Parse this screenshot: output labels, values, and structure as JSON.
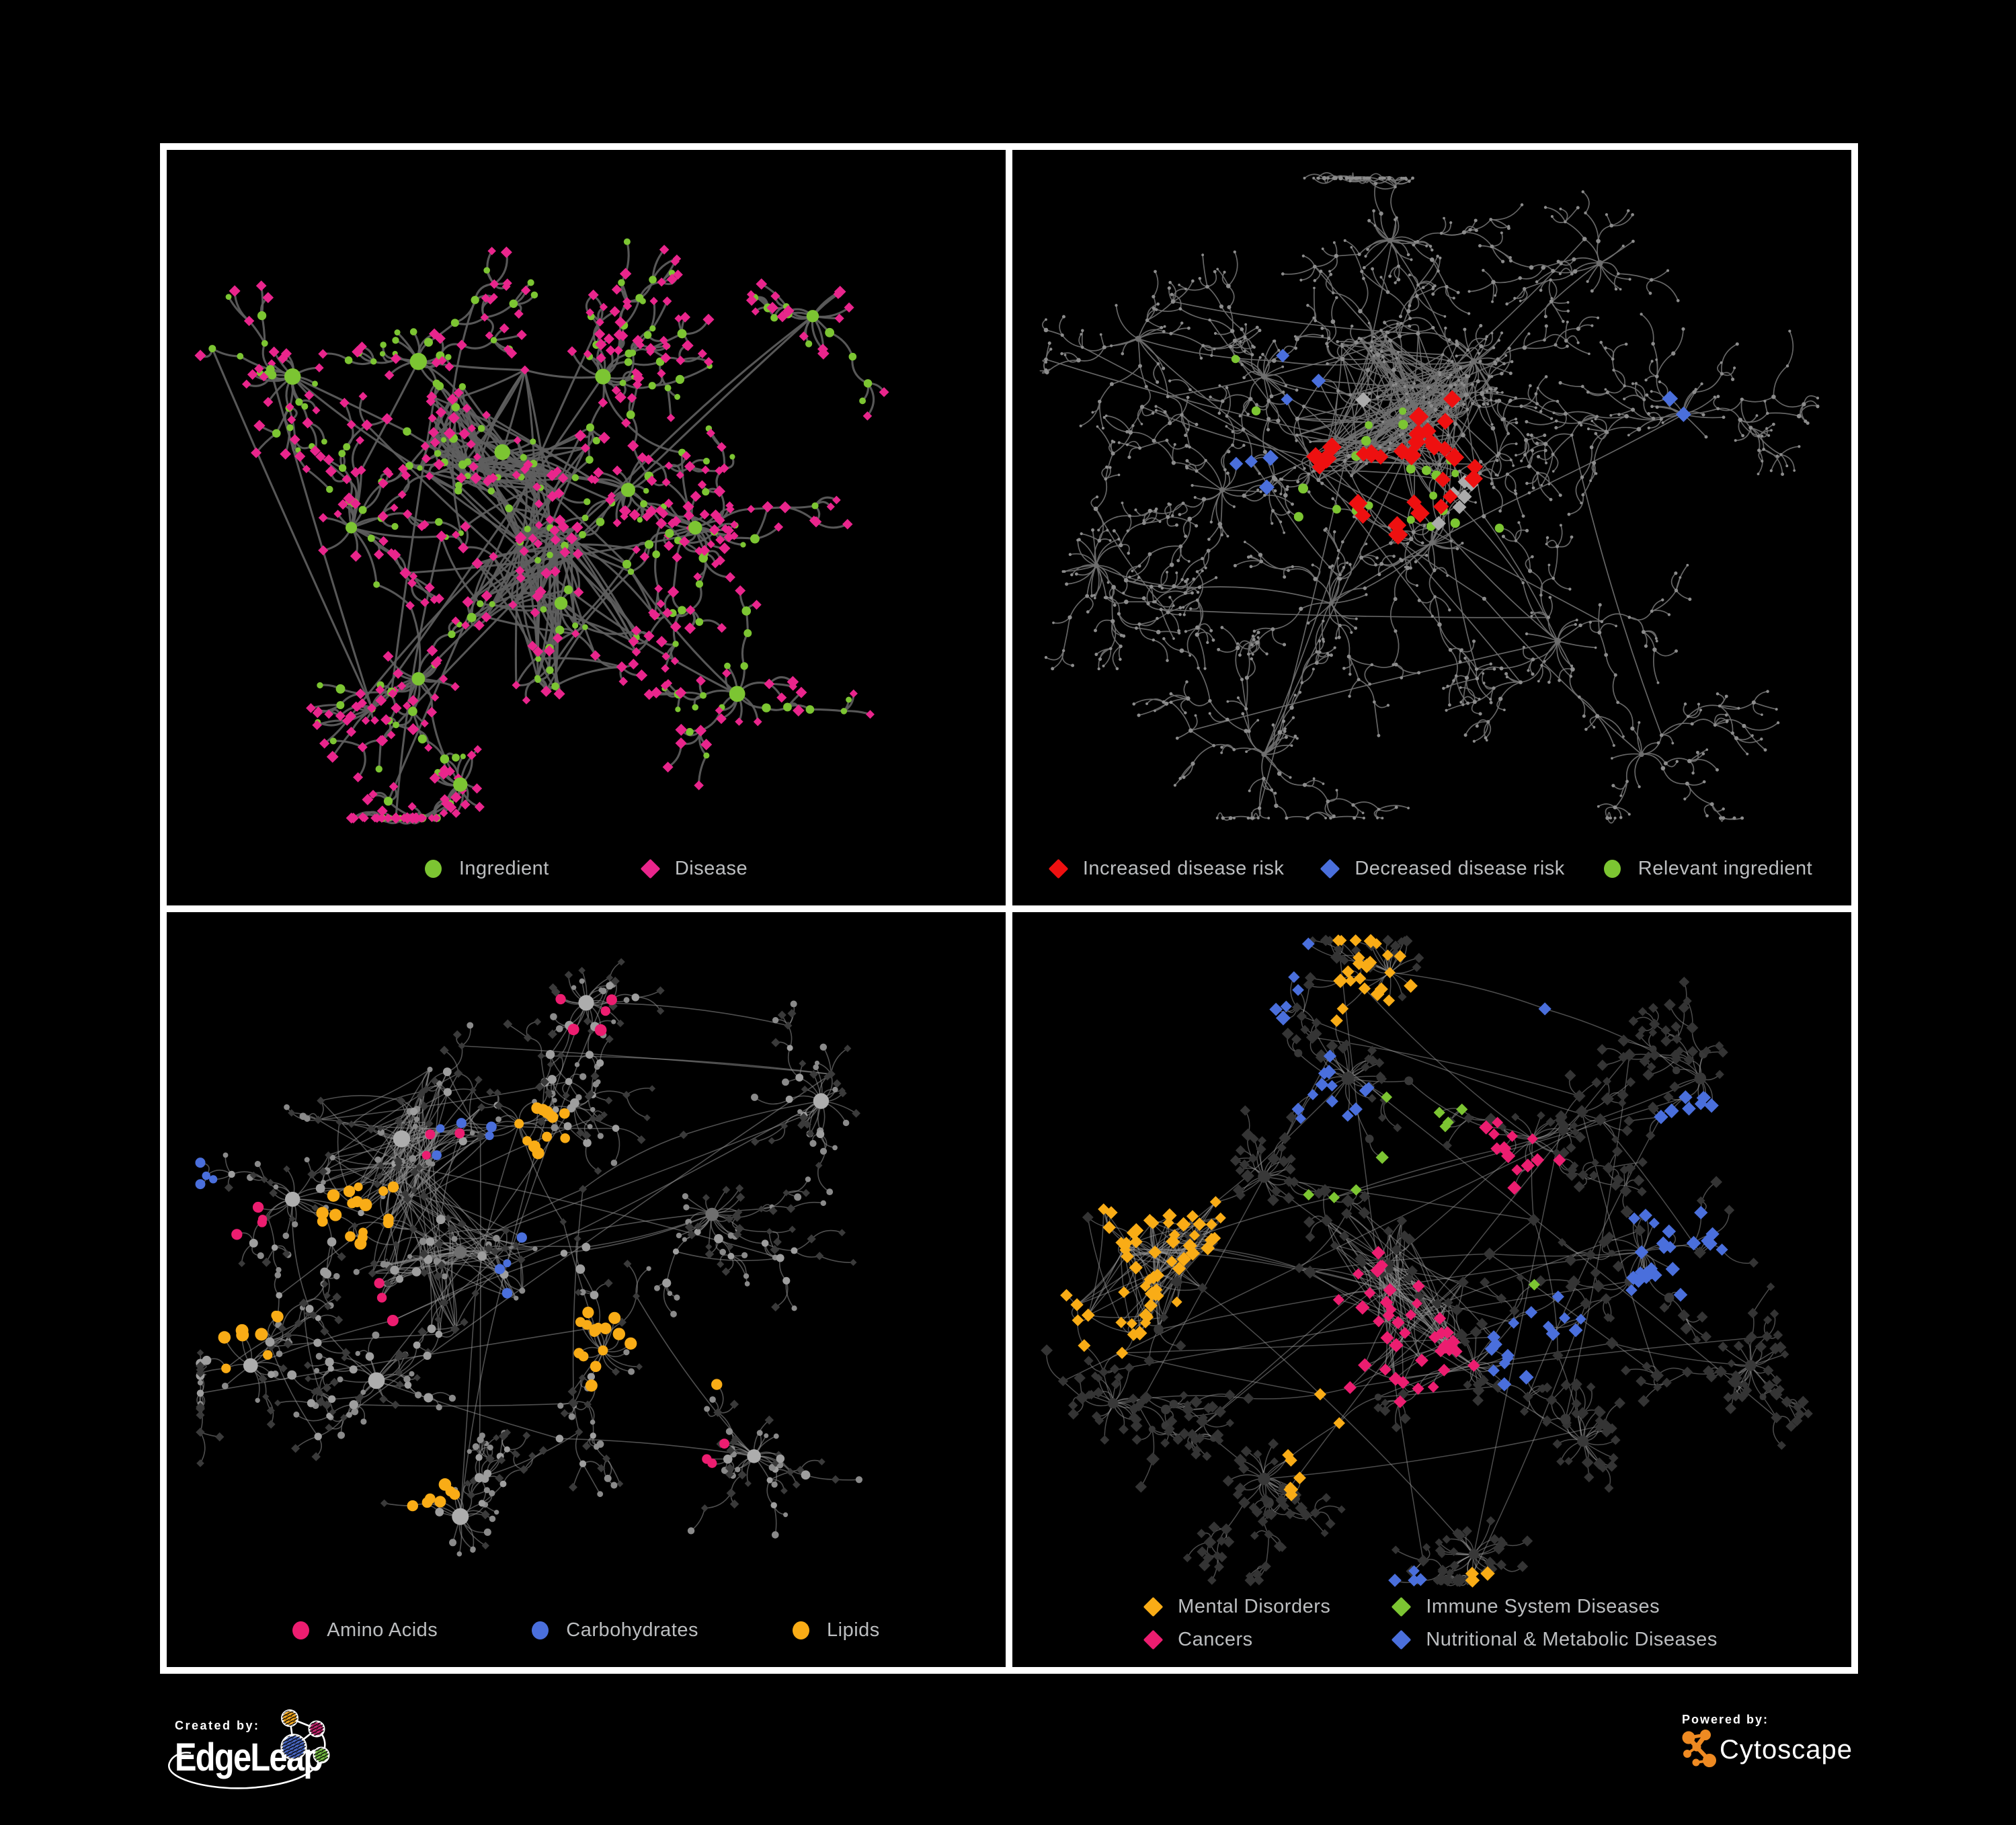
{
  "page": {
    "background": "#000000",
    "frame_color": "#FFFFFF"
  },
  "colors": {
    "green": "#7CC532",
    "pink_disease": "#E9258C",
    "pink_deep": "#EC1D70",
    "red": "#EE1010",
    "blue": "#4A6FDC",
    "orange": "#F9AC16",
    "legend_text": "#BCBEC0",
    "gray_light": "#9E9E9E",
    "gray_dot": "#8C8C8C",
    "gray_diamond": "#ABABAB",
    "dark_node": "#373737"
  },
  "panels": [
    {
      "id": "ingredient-disease",
      "legend": {
        "layout": "row",
        "items": [
          {
            "label": "Ingredient",
            "shape": "circle",
            "color": "#7CC532"
          },
          {
            "label": "Disease",
            "shape": "diamond",
            "color": "#E9258C"
          }
        ]
      },
      "network": {
        "seed": 7,
        "edge": {
          "color": "#5E5E5E",
          "width": 3.1,
          "opacity": 0.92
        },
        "centers": [
          [
            0.3,
            0.28
          ],
          [
            0.22,
            0.5
          ],
          [
            0.4,
            0.4
          ],
          [
            0.52,
            0.3
          ],
          [
            0.47,
            0.6
          ],
          [
            0.3,
            0.7
          ],
          [
            0.63,
            0.5
          ],
          [
            0.77,
            0.22
          ],
          [
            0.35,
            0.84
          ],
          [
            0.68,
            0.72
          ],
          [
            0.15,
            0.3
          ],
          [
            0.55,
            0.45
          ]
        ],
        "burst": [
          5,
          16
        ],
        "branches": [
          3,
          6
        ],
        "steps": [
          2,
          5
        ],
        "twig": 0.45,
        "fork": 0.3,
        "cross": 14,
        "hairballs": [
          2,
          4
        ],
        "roles": {
          "hub": [
            {
              "shape": "circle",
              "color": "#7CC532",
              "size": [
                8,
                13
              ],
              "w": 1
            }
          ],
          "internal": [
            {
              "shape": "circle",
              "color": "#7CC532",
              "size": [
                4.5,
                7
              ],
              "w": 0.55
            },
            {
              "shape": "diamond",
              "color": "#E9258C",
              "size": [
                6,
                9
              ],
              "w": 0.45
            }
          ],
          "leaf": [
            {
              "shape": "diamond",
              "color": "#E9258C",
              "size": [
                6,
                9
              ],
              "w": 0.8
            },
            {
              "shape": "circle",
              "color": "#7CC532",
              "size": [
                4,
                6
              ],
              "w": 0.2
            }
          ]
        },
        "highlights": []
      }
    },
    {
      "id": "disease-risk",
      "legend": {
        "layout": "row",
        "gap": 58,
        "items": [
          {
            "label": "Increased disease risk",
            "shape": "diamond",
            "color": "#EE1010"
          },
          {
            "label": "Decreased disease risk",
            "shape": "diamond",
            "color": "#4A6FDC"
          },
          {
            "label": "Relevant ingredient",
            "shape": "circle",
            "color": "#7CC532"
          }
        ]
      },
      "network": {
        "seed": 23,
        "edge": {
          "color": "#707070",
          "width": 1.7,
          "opacity": 0.9
        },
        "centers": [
          [
            0.3,
            0.3
          ],
          [
            0.45,
            0.36
          ],
          [
            0.55,
            0.28
          ],
          [
            0.25,
            0.45
          ],
          [
            0.5,
            0.52
          ],
          [
            0.38,
            0.6
          ],
          [
            0.15,
            0.25
          ],
          [
            0.7,
            0.15
          ],
          [
            0.8,
            0.35
          ],
          [
            0.65,
            0.65
          ],
          [
            0.3,
            0.8
          ],
          [
            0.75,
            0.8
          ],
          [
            0.45,
            0.12
          ],
          [
            0.1,
            0.55
          ]
        ],
        "burst": [
          4,
          14
        ],
        "branches": [
          4,
          7
        ],
        "steps": [
          3,
          6
        ],
        "twig": 0.7,
        "fork": 0.3,
        "cross": 20,
        "hairballs": [
          1
        ],
        "roles": {
          "hub": [
            {
              "shape": "circle",
              "color": "#6E6E6E",
              "size": [
                3.5,
                5
              ],
              "w": 1
            }
          ],
          "internal": [
            {
              "shape": "circle",
              "color": "#8C8C8C",
              "size": [
                2.2,
                3.4
              ],
              "w": 1
            }
          ],
          "leaf": [
            {
              "shape": "circle",
              "color": "#8C8C8C",
              "size": [
                1.8,
                2.6
              ],
              "w": 1
            }
          ]
        },
        "highlights": [
          {
            "shape": "diamond",
            "color": "#EE1010",
            "size": [
              11,
              15
            ],
            "count": 30,
            "spread": 0.1,
            "foci": [
              [
                0.45,
                0.4
              ],
              [
                0.57,
                0.35
              ],
              [
                0.5,
                0.52
              ],
              [
                0.33,
                0.44
              ],
              [
                0.75,
                0.76
              ]
            ]
          },
          {
            "shape": "diamond",
            "color": "#ABABAB",
            "size": [
              9,
              12
            ],
            "count": 7,
            "spread": 0.08,
            "foci": [
              [
                0.4,
                0.36
              ],
              [
                0.52,
                0.46
              ]
            ]
          },
          {
            "shape": "diamond",
            "color": "#4A6FDC",
            "size": [
              9,
              12
            ],
            "count": 9,
            "spread": 0.045,
            "foci": [
              [
                0.29,
                0.42
              ],
              [
                0.8,
                0.34
              ],
              [
                0.34,
                0.3
              ]
            ]
          },
          {
            "shape": "circle",
            "color": "#7CC532",
            "size": [
              5.5,
              7.5
            ],
            "count": 24,
            "spread": 0.1,
            "foci": [
              [
                0.28,
                0.3
              ],
              [
                0.47,
                0.38
              ],
              [
                0.36,
                0.52
              ],
              [
                0.56,
                0.52
              ]
            ]
          }
        ]
      }
    },
    {
      "id": "ingredient-classes",
      "legend": {
        "layout": "row",
        "items": [
          {
            "label": "Amino Acids",
            "shape": "circle",
            "color": "#EC1D70"
          },
          {
            "label": "Carbohydrates",
            "shape": "circle",
            "color": "#4A6FDC"
          },
          {
            "label": "Lipids",
            "shape": "circle",
            "color": "#F9AC16"
          }
        ]
      },
      "network": {
        "seed": 41,
        "edge": {
          "color": "#8F8F8F",
          "width": 1.6,
          "opacity": 0.55
        },
        "centers": [
          [
            0.28,
            0.3
          ],
          [
            0.42,
            0.28
          ],
          [
            0.15,
            0.38
          ],
          [
            0.35,
            0.45
          ],
          [
            0.52,
            0.58
          ],
          [
            0.25,
            0.62
          ],
          [
            0.65,
            0.4
          ],
          [
            0.78,
            0.25
          ],
          [
            0.35,
            0.8
          ],
          [
            0.7,
            0.72
          ],
          [
            0.5,
            0.12
          ],
          [
            0.1,
            0.6
          ]
        ],
        "burst": [
          6,
          20
        ],
        "branches": [
          3,
          6
        ],
        "steps": [
          2,
          5
        ],
        "twig": 0.5,
        "fork": 0.3,
        "cross": 26,
        "hairballs": [
          0,
          3
        ],
        "roles": {
          "hub": [
            {
              "shape": "circle",
              "color": "#ADADAD",
              "size": [
                9,
                13
              ],
              "w": 0.7
            },
            {
              "shape": "circle",
              "color": "#6F6F6F",
              "size": [
                8,
                11
              ],
              "w": 0.3
            }
          ],
          "internal": [
            {
              "shape": "circle",
              "color": "#9E9E9E",
              "size": [
                4.5,
                7
              ],
              "w": 0.6
            },
            {
              "shape": "diamond",
              "color": "#3A3A3A",
              "size": [
                5,
                7
              ],
              "w": 0.4
            }
          ],
          "leaf": [
            {
              "shape": "diamond",
              "color": "#3A3A3A",
              "size": [
                5,
                7
              ],
              "w": 0.55
            },
            {
              "shape": "circle",
              "color": "#8A8A8A",
              "size": [
                3.5,
                5.5
              ],
              "w": 0.45
            }
          ]
        },
        "highlights": [
          {
            "shape": "circle",
            "color": "#F9AC16",
            "size": [
              6.5,
              9.5
            ],
            "count": 60,
            "spread": 0.07,
            "foci": [
              [
                0.44,
                0.3
              ],
              [
                0.5,
                0.56
              ],
              [
                0.3,
                0.77
              ],
              [
                0.68,
                0.58
              ],
              [
                0.08,
                0.54
              ],
              [
                0.23,
                0.4
              ]
            ]
          },
          {
            "shape": "circle",
            "color": "#4A6FDC",
            "size": [
              6,
              8
            ],
            "count": 13,
            "spread": 0.05,
            "foci": [
              [
                0.36,
                0.3
              ],
              [
                0.4,
                0.47
              ],
              [
                0.04,
                0.33
              ],
              [
                0.78,
                0.6
              ]
            ]
          },
          {
            "shape": "circle",
            "color": "#EC1D70",
            "size": [
              6.5,
              9
            ],
            "count": 18,
            "spread": 0.04,
            "foci": [
              [
                0.1,
                0.4
              ],
              [
                0.25,
                0.52
              ],
              [
                0.45,
                0.83
              ],
              [
                0.63,
                0.72
              ],
              [
                0.85,
                0.37
              ],
              [
                0.5,
                0.12
              ],
              [
                0.33,
                0.3
              ]
            ]
          }
        ]
      }
    },
    {
      "id": "disease-classes",
      "legend": {
        "layout": "grid2",
        "items": [
          {
            "label": "Mental Disorders",
            "shape": "diamond",
            "color": "#F9AC16"
          },
          {
            "label": "Immune System Diseases",
            "shape": "diamond",
            "color": "#7CC532"
          },
          {
            "label": "Cancers",
            "shape": "diamond",
            "color": "#EC1D70"
          },
          {
            "label": "Nutritional & Metabolic Diseases",
            "shape": "diamond",
            "color": "#4A6FDC"
          }
        ]
      },
      "network": {
        "seed": 59,
        "edge": {
          "color": "#989898",
          "width": 1.5,
          "opacity": 0.5
        },
        "centers": [
          [
            0.17,
            0.45
          ],
          [
            0.3,
            0.35
          ],
          [
            0.45,
            0.5
          ],
          [
            0.55,
            0.6
          ],
          [
            0.4,
            0.22
          ],
          [
            0.62,
            0.3
          ],
          [
            0.75,
            0.45
          ],
          [
            0.82,
            0.22
          ],
          [
            0.55,
            0.85
          ],
          [
            0.3,
            0.75
          ],
          [
            0.68,
            0.7
          ],
          [
            0.88,
            0.6
          ],
          [
            0.45,
            0.08
          ],
          [
            0.12,
            0.65
          ]
        ],
        "burst": [
          8,
          22
        ],
        "branches": [
          3,
          6
        ],
        "steps": [
          2,
          4
        ],
        "twig": 0.5,
        "fork": 0.3,
        "cross": 34,
        "hairballs": [
          0,
          2
        ],
        "roles": {
          "hub": [
            {
              "shape": "circle",
              "color": "#383838",
              "size": [
                7,
                10
              ],
              "w": 1
            }
          ],
          "internal": [
            {
              "shape": "diamond",
              "color": "#343434",
              "size": [
                7,
                10
              ],
              "w": 0.85
            },
            {
              "shape": "circle",
              "color": "#383838",
              "size": [
                5,
                8
              ],
              "w": 0.15
            }
          ],
          "leaf": [
            {
              "shape": "diamond",
              "color": "#343434",
              "size": [
                6,
                9
              ],
              "w": 1
            }
          ]
        },
        "highlights": [
          {
            "shape": "diamond",
            "color": "#F9AC16",
            "size": [
              8,
              11
            ],
            "count": 95,
            "spread": 0.06,
            "foci": [
              [
                0.15,
                0.44
              ],
              [
                0.2,
                0.38
              ],
              [
                0.12,
                0.52
              ],
              [
                0.42,
                0.1
              ],
              [
                0.6,
                0.92
              ],
              [
                0.35,
                0.7
              ]
            ]
          },
          {
            "shape": "diamond",
            "color": "#EC1D70",
            "size": [
              8,
              11
            ],
            "count": 55,
            "spread": 0.055,
            "foci": [
              [
                0.43,
                0.52
              ],
              [
                0.5,
                0.6
              ],
              [
                0.37,
                0.62
              ],
              [
                0.97,
                0.25
              ],
              [
                0.6,
                0.33
              ]
            ]
          },
          {
            "shape": "diamond",
            "color": "#4A6FDC",
            "size": [
              8,
              11
            ],
            "count": 75,
            "spread": 0.05,
            "foci": [
              [
                0.62,
                0.57
              ],
              [
                0.82,
                0.3
              ],
              [
                0.6,
                0.1
              ],
              [
                0.38,
                0.25
              ],
              [
                0.78,
                0.45
              ],
              [
                0.9,
                0.12
              ],
              [
                0.3,
                0.08
              ],
              [
                0.45,
                0.93
              ]
            ]
          },
          {
            "shape": "diamond",
            "color": "#7CC532",
            "size": [
              8,
              10
            ],
            "count": 10,
            "spread": 0.2,
            "foci": [
              [
                0.3,
                0.4
              ],
              [
                0.55,
                0.25
              ],
              [
                0.65,
                0.6
              ],
              [
                0.3,
                0.85
              ]
            ]
          }
        ]
      }
    }
  ],
  "footer": {
    "created_by": {
      "label": "Created by:",
      "brand": "EdgeLeap"
    },
    "powered_by": {
      "label": "Powered by:",
      "brand": "Cytoscape"
    }
  }
}
